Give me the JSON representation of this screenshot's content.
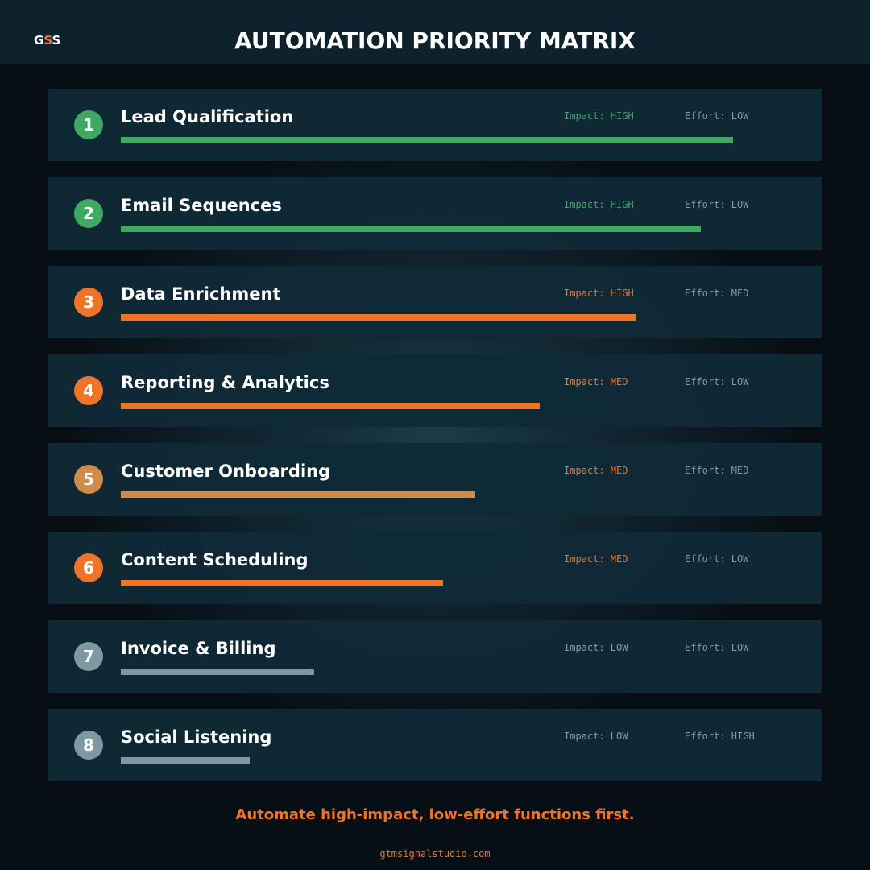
{
  "header": {
    "logo": [
      "G",
      "S",
      "S"
    ],
    "title": "AUTOMATION PRIORITY MATRIX"
  },
  "xlim": [
    0,
    100
  ],
  "rows": [
    {
      "rank": 1,
      "name": "Lead Qualification",
      "impact": "Impact: HIGH",
      "effort": "Effort: LOW",
      "score": 95,
      "color": "#3fa862",
      "impact_color": "#3fa862"
    },
    {
      "rank": 2,
      "name": "Email Sequences",
      "impact": "Impact: HIGH",
      "effort": "Effort: LOW",
      "score": 90,
      "color": "#3fa862",
      "impact_color": "#3fa862"
    },
    {
      "rank": 3,
      "name": "Data Enrichment",
      "impact": "Impact: HIGH",
      "effort": "Effort: MED",
      "score": 80,
      "color": "#f07428",
      "impact_color": "#f07428"
    },
    {
      "rank": 4,
      "name": "Reporting & Analytics",
      "impact": "Impact: MED",
      "effort": "Effort: LOW",
      "score": 65,
      "color": "#f07428",
      "impact_color": "#f07428"
    },
    {
      "rank": 5,
      "name": "Customer Onboarding",
      "impact": "Impact: MED",
      "effort": "Effort: MED",
      "score": 55,
      "color": "#d08a4a",
      "impact_color": "#f07428"
    },
    {
      "rank": 6,
      "name": "Content Scheduling",
      "impact": "Impact: MED",
      "effort": "Effort: LOW",
      "score": 50,
      "color": "#f07428",
      "impact_color": "#f07428"
    },
    {
      "rank": 7,
      "name": "Invoice & Billing",
      "impact": "Impact: LOW",
      "effort": "Effort: LOW",
      "score": 30,
      "color": "#7f98a4",
      "impact_color": "#8a9aa2"
    },
    {
      "rank": 8,
      "name": "Social Listening",
      "impact": "Impact: LOW",
      "effort": "Effort: HIGH",
      "score": 20,
      "color": "#7f98a4",
      "impact_color": "#8a9aa2"
    }
  ],
  "footer": {
    "tagline": "Automate high-impact, low-effort functions first.",
    "url": "gtmsignalstudio.com"
  }
}
